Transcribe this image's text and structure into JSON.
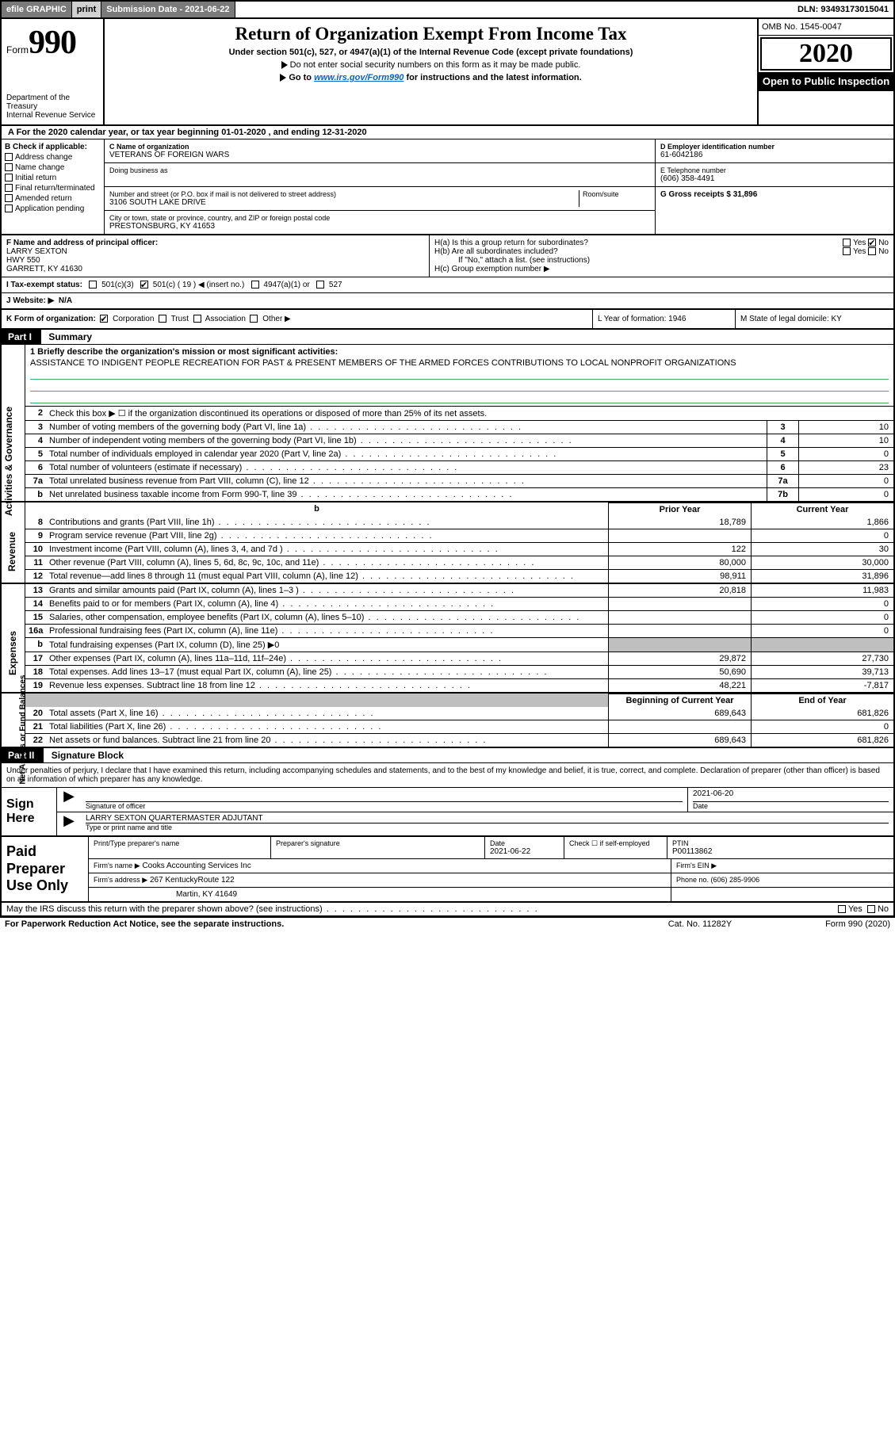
{
  "top_bar": {
    "efile": "efile GRAPHIC",
    "print": "print",
    "sub_date_label": "Submission Date - 2021-06-22",
    "dln": "DLN: 93493173015041"
  },
  "header": {
    "form_word": "Form",
    "form_num": "990",
    "dept": "Department of the Treasury\nInternal Revenue Service",
    "title": "Return of Organization Exempt From Income Tax",
    "subtitle": "Under section 501(c), 527, or 4947(a)(1) of the Internal Revenue Code (except private foundations)",
    "sub2": "Do not enter social security numbers on this form as it may be made public.",
    "sub3a": "Go to ",
    "sub3link": "www.irs.gov/Form990",
    "sub3b": " for instructions and the latest information.",
    "omb": "OMB No. 1545-0047",
    "year": "2020",
    "otp": "Open to Public Inspection"
  },
  "row_a": "A For the 2020 calendar year, or tax year beginning 01-01-2020     , and ending 12-31-2020",
  "section_b": {
    "header": "B Check if applicable:",
    "items": [
      "Address change",
      "Name change",
      "Initial return",
      "Final return/terminated",
      "Amended return",
      "Application pending"
    ]
  },
  "section_c": {
    "name_label": "C Name of organization",
    "name": "VETERANS OF FOREIGN WARS",
    "dba_label": "Doing business as",
    "addr_label": "Number and street (or P.O. box if mail is not delivered to street address)",
    "room_label": "Room/suite",
    "addr": "3106 SOUTH LAKE DRIVE",
    "city_label": "City or town, state or province, country, and ZIP or foreign postal code",
    "city": "PRESTONSBURG, KY  41653"
  },
  "section_d": {
    "label": "D Employer identification number",
    "value": "61-6042186"
  },
  "section_e": {
    "label": "E Telephone number",
    "value": "(606) 358-4491"
  },
  "section_g": {
    "label": "G Gross receipts $ 31,896"
  },
  "section_f": {
    "label": "F  Name and address of principal officer:",
    "line1": "LARRY SEXTON",
    "line2": "HWY 550",
    "line3": "GARRETT, KY  41630"
  },
  "section_h": {
    "ha": "H(a)  Is this a group return for subordinates?",
    "hb": "H(b)  Are all subordinates included?",
    "hb_note": "If \"No,\" attach a list. (see instructions)",
    "hc": "H(c)  Group exemption number ▶",
    "yes": "Yes",
    "no": "No"
  },
  "tax_row": {
    "i_label": "I   Tax-exempt status:",
    "opts": [
      "501(c)(3)",
      "501(c) ( 19 ) ◀ (insert no.)",
      "4947(a)(1) or",
      "527"
    ]
  },
  "website": {
    "j_label": "J   Website: ▶",
    "value": "N/A"
  },
  "klm": {
    "k": "K Form of organization:",
    "k_opts": [
      "Corporation",
      "Trust",
      "Association",
      "Other ▶"
    ],
    "l": "L Year of formation: 1946",
    "m": "M State of legal domicile: KY"
  },
  "part1": {
    "tag": "Part I",
    "title": "Summary"
  },
  "mission": {
    "line1_label": "1  Briefly describe the organization's mission or most significant activities:",
    "text": "ASSISTANCE TO INDIGENT PEOPLE RECREATION FOR PAST & PRESENT MEMBERS OF THE ARMED FORCES CONTRIBUTIONS TO LOCAL NONPROFIT ORGANIZATIONS"
  },
  "gov_rows": [
    {
      "n": "2",
      "d": "Check this box ▶ ☐  if the organization discontinued its operations or disposed of more than 25% of its net assets."
    },
    {
      "n": "3",
      "d": "Number of voting members of the governing body (Part VI, line 1a)",
      "box": "3",
      "v": "10"
    },
    {
      "n": "4",
      "d": "Number of independent voting members of the governing body (Part VI, line 1b)",
      "box": "4",
      "v": "10"
    },
    {
      "n": "5",
      "d": "Total number of individuals employed in calendar year 2020 (Part V, line 2a)",
      "box": "5",
      "v": "0"
    },
    {
      "n": "6",
      "d": "Total number of volunteers (estimate if necessary)",
      "box": "6",
      "v": "23"
    },
    {
      "n": "7a",
      "d": "Total unrelated business revenue from Part VIII, column (C), line 12",
      "box": "7a",
      "v": "0"
    },
    {
      "n": "b",
      "d": "Net unrelated business taxable income from Form 990-T, line 39",
      "box": "7b",
      "v": "0"
    }
  ],
  "col_hdrs": {
    "prior": "Prior Year",
    "current": "Current Year"
  },
  "revenue": [
    {
      "n": "8",
      "d": "Contributions and grants (Part VIII, line 1h)",
      "p": "18,789",
      "c": "1,866"
    },
    {
      "n": "9",
      "d": "Program service revenue (Part VIII, line 2g)",
      "p": "",
      "c": "0"
    },
    {
      "n": "10",
      "d": "Investment income (Part VIII, column (A), lines 3, 4, and 7d )",
      "p": "122",
      "c": "30"
    },
    {
      "n": "11",
      "d": "Other revenue (Part VIII, column (A), lines 5, 6d, 8c, 9c, 10c, and 11e)",
      "p": "80,000",
      "c": "30,000"
    },
    {
      "n": "12",
      "d": "Total revenue—add lines 8 through 11 (must equal Part VIII, column (A), line 12)",
      "p": "98,911",
      "c": "31,896"
    }
  ],
  "expenses": [
    {
      "n": "13",
      "d": "Grants and similar amounts paid (Part IX, column (A), lines 1–3 )",
      "p": "20,818",
      "c": "11,983"
    },
    {
      "n": "14",
      "d": "Benefits paid to or for members (Part IX, column (A), line 4)",
      "p": "",
      "c": "0"
    },
    {
      "n": "15",
      "d": "Salaries, other compensation, employee benefits (Part IX, column (A), lines 5–10)",
      "p": "",
      "c": "0"
    },
    {
      "n": "16a",
      "d": "Professional fundraising fees (Part IX, column (A), line 11e)",
      "p": "",
      "c": "0"
    },
    {
      "n": "b",
      "d": "Total fundraising expenses (Part IX, column (D), line 25) ▶0",
      "grey": true
    },
    {
      "n": "17",
      "d": "Other expenses (Part IX, column (A), lines 11a–11d, 11f–24e)",
      "p": "29,872",
      "c": "27,730"
    },
    {
      "n": "18",
      "d": "Total expenses. Add lines 13–17 (must equal Part IX, column (A), line 25)",
      "p": "50,690",
      "c": "39,713"
    },
    {
      "n": "19",
      "d": "Revenue less expenses. Subtract line 18 from line 12",
      "p": "48,221",
      "c": "-7,817"
    }
  ],
  "net_hdrs": {
    "begin": "Beginning of Current Year",
    "end": "End of Year"
  },
  "net_assets": [
    {
      "n": "20",
      "d": "Total assets (Part X, line 16)",
      "p": "689,643",
      "c": "681,826"
    },
    {
      "n": "21",
      "d": "Total liabilities (Part X, line 26)",
      "p": "",
      "c": "0"
    },
    {
      "n": "22",
      "d": "Net assets or fund balances. Subtract line 21 from line 20",
      "p": "689,643",
      "c": "681,826"
    }
  ],
  "part2": {
    "tag": "Part II",
    "title": "Signature Block"
  },
  "sig_declare": "Under penalties of perjury, I declare that I have examined this return, including accompanying schedules and statements, and to the best of my knowledge and belief, it is true, correct, and complete. Declaration of preparer (other than officer) is based on all information of which preparer has any knowledge.",
  "sign": {
    "left": "Sign Here",
    "sig_label": "Signature of officer",
    "date_label": "Date",
    "date": "2021-06-20",
    "name": "LARRY SEXTON QUARTERMASTER ADJUTANT",
    "name_label": "Type or print name and title"
  },
  "prep": {
    "left": "Paid Preparer Use Only",
    "r1": {
      "c1": "Print/Type preparer's name",
      "c2": "Preparer's signature",
      "c3": "Date",
      "c3v": "2021-06-22",
      "c4": "Check ☐  if self-employed",
      "c5": "PTIN",
      "c5v": "P00113862"
    },
    "r2": {
      "label": "Firm's name    ▶",
      "value": "Cooks Accounting Services Inc",
      "ein": "Firm's EIN ▶"
    },
    "r3": {
      "label": "Firm's address ▶",
      "value": "267 KentuckyRoute 122",
      "phone": "Phone no. (606) 285-9906"
    },
    "r3b": "Martin, KY  41649"
  },
  "discuss": "May the IRS discuss this return with the preparer shown above? (see instructions)",
  "footer": {
    "left": "For Paperwork Reduction Act Notice, see the separate instructions.",
    "mid": "Cat. No. 11282Y",
    "right": "Form 990 (2020)"
  },
  "side_labels": {
    "gov": "Activities & Governance",
    "rev": "Revenue",
    "exp": "Expenses",
    "net": "Net Assets or Fund Balances"
  }
}
